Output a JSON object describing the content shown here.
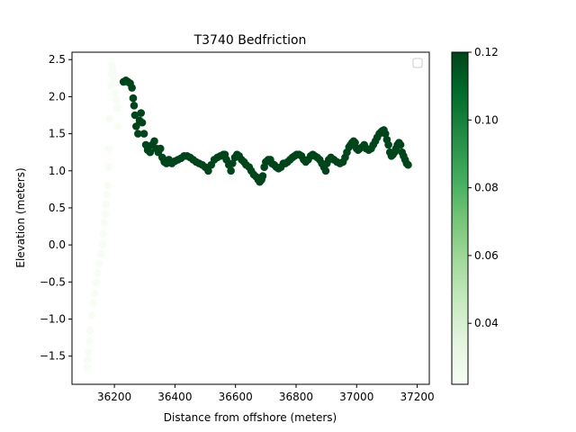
{
  "chart_data": {
    "type": "scatter",
    "title": "T3740 Bedfriction",
    "xlabel": "Distance from offshore (meters)",
    "ylabel": "Elevation (meters)",
    "xlim": [
      36060,
      37240
    ],
    "ylim": [
      -1.88,
      2.6
    ],
    "xticks": [
      36200,
      36400,
      36600,
      36800,
      37000,
      37200
    ],
    "yticks": [
      -1.5,
      -1.0,
      -0.5,
      0.0,
      0.5,
      1.0,
      1.5,
      2.0,
      2.5
    ],
    "xtick_labels": [
      "36200",
      "36400",
      "36600",
      "36800",
      "37000",
      "37200"
    ],
    "ytick_labels": [
      "−1.5",
      "−1.0",
      "−0.5",
      "0.0",
      "0.5",
      "1.0",
      "1.5",
      "2.0",
      "2.5"
    ],
    "colormap": "Greens",
    "colorbar": {
      "min": 0.022,
      "max": 0.12,
      "ticks": [
        0.04,
        0.06,
        0.08,
        0.1,
        0.12
      ],
      "tick_labels": [
        "0.04",
        "0.06",
        "0.08",
        "0.10",
        "0.12"
      ]
    },
    "legend": {
      "location": "top-right",
      "entries": []
    },
    "grid": false,
    "series": [
      {
        "points": [
          [
            36110,
            -1.65
          ],
          [
            36112,
            -1.55
          ],
          [
            36115,
            -1.45
          ],
          [
            36118,
            -1.3
          ],
          [
            36120,
            -1.15
          ],
          [
            36125,
            -0.95
          ],
          [
            36130,
            -0.78
          ],
          [
            36135,
            -0.65
          ],
          [
            36140,
            -0.5
          ],
          [
            36145,
            -0.38
          ],
          [
            36150,
            -0.25
          ],
          [
            36155,
            -0.12
          ],
          [
            36160,
            0.0
          ],
          [
            36163,
            0.15
          ],
          [
            36166,
            0.3
          ],
          [
            36170,
            0.42
          ],
          [
            36172,
            0.55
          ],
          [
            36175,
            0.68
          ],
          [
            36178,
            0.8
          ],
          [
            36180,
            1.05
          ],
          [
            36182,
            1.3
          ],
          [
            36185,
            1.7
          ],
          [
            36188,
            2.15
          ],
          [
            36190,
            2.3
          ],
          [
            36192,
            2.42
          ],
          [
            36195,
            2.35
          ],
          [
            36198,
            2.25
          ],
          [
            36200,
            2.18
          ],
          [
            36203,
            2.05
          ],
          [
            36206,
            1.95
          ],
          [
            36210,
            1.85
          ],
          [
            36212,
            1.6
          ],
          [
            36230,
            2.2
          ],
          [
            36238,
            2.22
          ],
          [
            36245,
            2.2
          ],
          [
            36252,
            2.18
          ],
          [
            36258,
            2.12
          ],
          [
            36262,
            1.98
          ],
          [
            36265,
            1.88
          ],
          [
            36268,
            1.75
          ],
          [
            36272,
            1.6
          ],
          [
            36278,
            1.5
          ],
          [
            36283,
            1.68
          ],
          [
            36288,
            1.78
          ],
          [
            36292,
            1.65
          ],
          [
            36298,
            1.5
          ],
          [
            36304,
            1.35
          ],
          [
            36310,
            1.28
          ],
          [
            36318,
            1.25
          ],
          [
            36325,
            1.35
          ],
          [
            36332,
            1.4
          ],
          [
            36338,
            1.3
          ],
          [
            36345,
            1.25
          ],
          [
            36352,
            1.3
          ],
          [
            36358,
            1.18
          ],
          [
            36365,
            1.12
          ],
          [
            36372,
            1.1
          ],
          [
            36380,
            1.15
          ],
          [
            36390,
            1.1
          ],
          [
            36400,
            1.13
          ],
          [
            36410,
            1.15
          ],
          [
            36420,
            1.17
          ],
          [
            36430,
            1.2
          ],
          [
            36440,
            1.2
          ],
          [
            36450,
            1.18
          ],
          [
            36460,
            1.15
          ],
          [
            36470,
            1.12
          ],
          [
            36480,
            1.1
          ],
          [
            36490,
            1.08
          ],
          [
            36500,
            1.05
          ],
          [
            36510,
            1.0
          ],
          [
            36520,
            1.08
          ],
          [
            36530,
            1.15
          ],
          [
            36540,
            1.18
          ],
          [
            36550,
            1.2
          ],
          [
            36560,
            1.22
          ],
          [
            36565,
            1.22
          ],
          [
            36570,
            1.15
          ],
          [
            36578,
            1.08
          ],
          [
            36585,
            1.0
          ],
          [
            36590,
            1.1
          ],
          [
            36598,
            1.18
          ],
          [
            36605,
            1.22
          ],
          [
            36612,
            1.2
          ],
          [
            36620,
            1.15
          ],
          [
            36628,
            1.12
          ],
          [
            36635,
            1.08
          ],
          [
            36645,
            1.05
          ],
          [
            36652,
            1.0
          ],
          [
            36660,
            0.95
          ],
          [
            36668,
            0.92
          ],
          [
            36675,
            0.88
          ],
          [
            36680,
            0.85
          ],
          [
            36686,
            0.88
          ],
          [
            36690,
            0.93
          ],
          [
            36695,
            1.05
          ],
          [
            36700,
            1.12
          ],
          [
            36708,
            1.15
          ],
          [
            36715,
            1.15
          ],
          [
            36720,
            1.1
          ],
          [
            36728,
            1.08
          ],
          [
            36735,
            1.05
          ],
          [
            36742,
            1.03
          ],
          [
            36750,
            1.05
          ],
          [
            36758,
            1.1
          ],
          [
            36765,
            1.1
          ],
          [
            36772,
            1.12
          ],
          [
            36780,
            1.15
          ],
          [
            36788,
            1.18
          ],
          [
            36795,
            1.2
          ],
          [
            36802,
            1.22
          ],
          [
            36810,
            1.22
          ],
          [
            36818,
            1.2
          ],
          [
            36825,
            1.15
          ],
          [
            36832,
            1.12
          ],
          [
            36840,
            1.15
          ],
          [
            36848,
            1.2
          ],
          [
            36855,
            1.22
          ],
          [
            36862,
            1.2
          ],
          [
            36870,
            1.18
          ],
          [
            36878,
            1.15
          ],
          [
            36885,
            1.1
          ],
          [
            36892,
            1.05
          ],
          [
            36898,
            1.0
          ],
          [
            36902,
            1.1
          ],
          [
            36908,
            1.15
          ],
          [
            36915,
            1.18
          ],
          [
            36925,
            1.15
          ],
          [
            36935,
            1.12
          ],
          [
            36945,
            1.1
          ],
          [
            36955,
            1.12
          ],
          [
            36962,
            1.18
          ],
          [
            36968,
            1.25
          ],
          [
            36975,
            1.32
          ],
          [
            36980,
            1.35
          ],
          [
            36985,
            1.38
          ],
          [
            36990,
            1.4
          ],
          [
            36995,
            1.38
          ],
          [
            37000,
            1.3
          ],
          [
            37005,
            1.28
          ],
          [
            37010,
            1.3
          ],
          [
            37018,
            1.32
          ],
          [
            37025,
            1.35
          ],
          [
            37032,
            1.3
          ],
          [
            37040,
            1.28
          ],
          [
            37048,
            1.3
          ],
          [
            37055,
            1.35
          ],
          [
            37062,
            1.4
          ],
          [
            37068,
            1.45
          ],
          [
            37075,
            1.5
          ],
          [
            37080,
            1.52
          ],
          [
            37085,
            1.54
          ],
          [
            37090,
            1.55
          ],
          [
            37095,
            1.5
          ],
          [
            37100,
            1.42
          ],
          [
            37105,
            1.35
          ],
          [
            37110,
            1.25
          ],
          [
            37115,
            1.2
          ],
          [
            37120,
            1.22
          ],
          [
            37125,
            1.25
          ],
          [
            37130,
            1.3
          ],
          [
            37135,
            1.35
          ],
          [
            37140,
            1.38
          ],
          [
            37145,
            1.35
          ],
          [
            37150,
            1.25
          ],
          [
            37155,
            1.2
          ],
          [
            37160,
            1.15
          ],
          [
            37165,
            1.1
          ],
          [
            37170,
            1.08
          ]
        ],
        "color_values": [
          0.022,
          0.022,
          0.022,
          0.022,
          0.022,
          0.022,
          0.022,
          0.022,
          0.022,
          0.022,
          0.022,
          0.022,
          0.022,
          0.022,
          0.022,
          0.022,
          0.022,
          0.022,
          0.022,
          0.022,
          0.022,
          0.022,
          0.022,
          0.022,
          0.022,
          0.022,
          0.022,
          0.022,
          0.022,
          0.022,
          0.022,
          0.022,
          0.12,
          0.12,
          0.12,
          0.12,
          0.12,
          0.12,
          0.12,
          0.12,
          0.12,
          0.12,
          0.12,
          0.12,
          0.12,
          0.12,
          0.12,
          0.12,
          0.12,
          0.12,
          0.12,
          0.12,
          0.12,
          0.12,
          0.12,
          0.12,
          0.12,
          0.12,
          0.12,
          0.12,
          0.12,
          0.12,
          0.12,
          0.12,
          0.12,
          0.12,
          0.12,
          0.12,
          0.12,
          0.12,
          0.12,
          0.12,
          0.12,
          0.12,
          0.12,
          0.12,
          0.12,
          0.12,
          0.12,
          0.12,
          0.12,
          0.12,
          0.12,
          0.12,
          0.12,
          0.12,
          0.12,
          0.12,
          0.12,
          0.12,
          0.12,
          0.12,
          0.12,
          0.12,
          0.12,
          0.12,
          0.12,
          0.12,
          0.12,
          0.12,
          0.12,
          0.12,
          0.12,
          0.12,
          0.12,
          0.12,
          0.12,
          0.12,
          0.12,
          0.12,
          0.12,
          0.12,
          0.12,
          0.12,
          0.12,
          0.12,
          0.12,
          0.12,
          0.12,
          0.12,
          0.12,
          0.12,
          0.12,
          0.12,
          0.12,
          0.12,
          0.12,
          0.12,
          0.12,
          0.12,
          0.12,
          0.12,
          0.12,
          0.12,
          0.12,
          0.12,
          0.12,
          0.12,
          0.12,
          0.12,
          0.12,
          0.12,
          0.12,
          0.12,
          0.12,
          0.12,
          0.12,
          0.12,
          0.12,
          0.12,
          0.12,
          0.12,
          0.12,
          0.12,
          0.12,
          0.12,
          0.12,
          0.12,
          0.12,
          0.12,
          0.12,
          0.12,
          0.12,
          0.12,
          0.12,
          0.12,
          0.12,
          0.12,
          0.12
        ]
      }
    ]
  }
}
